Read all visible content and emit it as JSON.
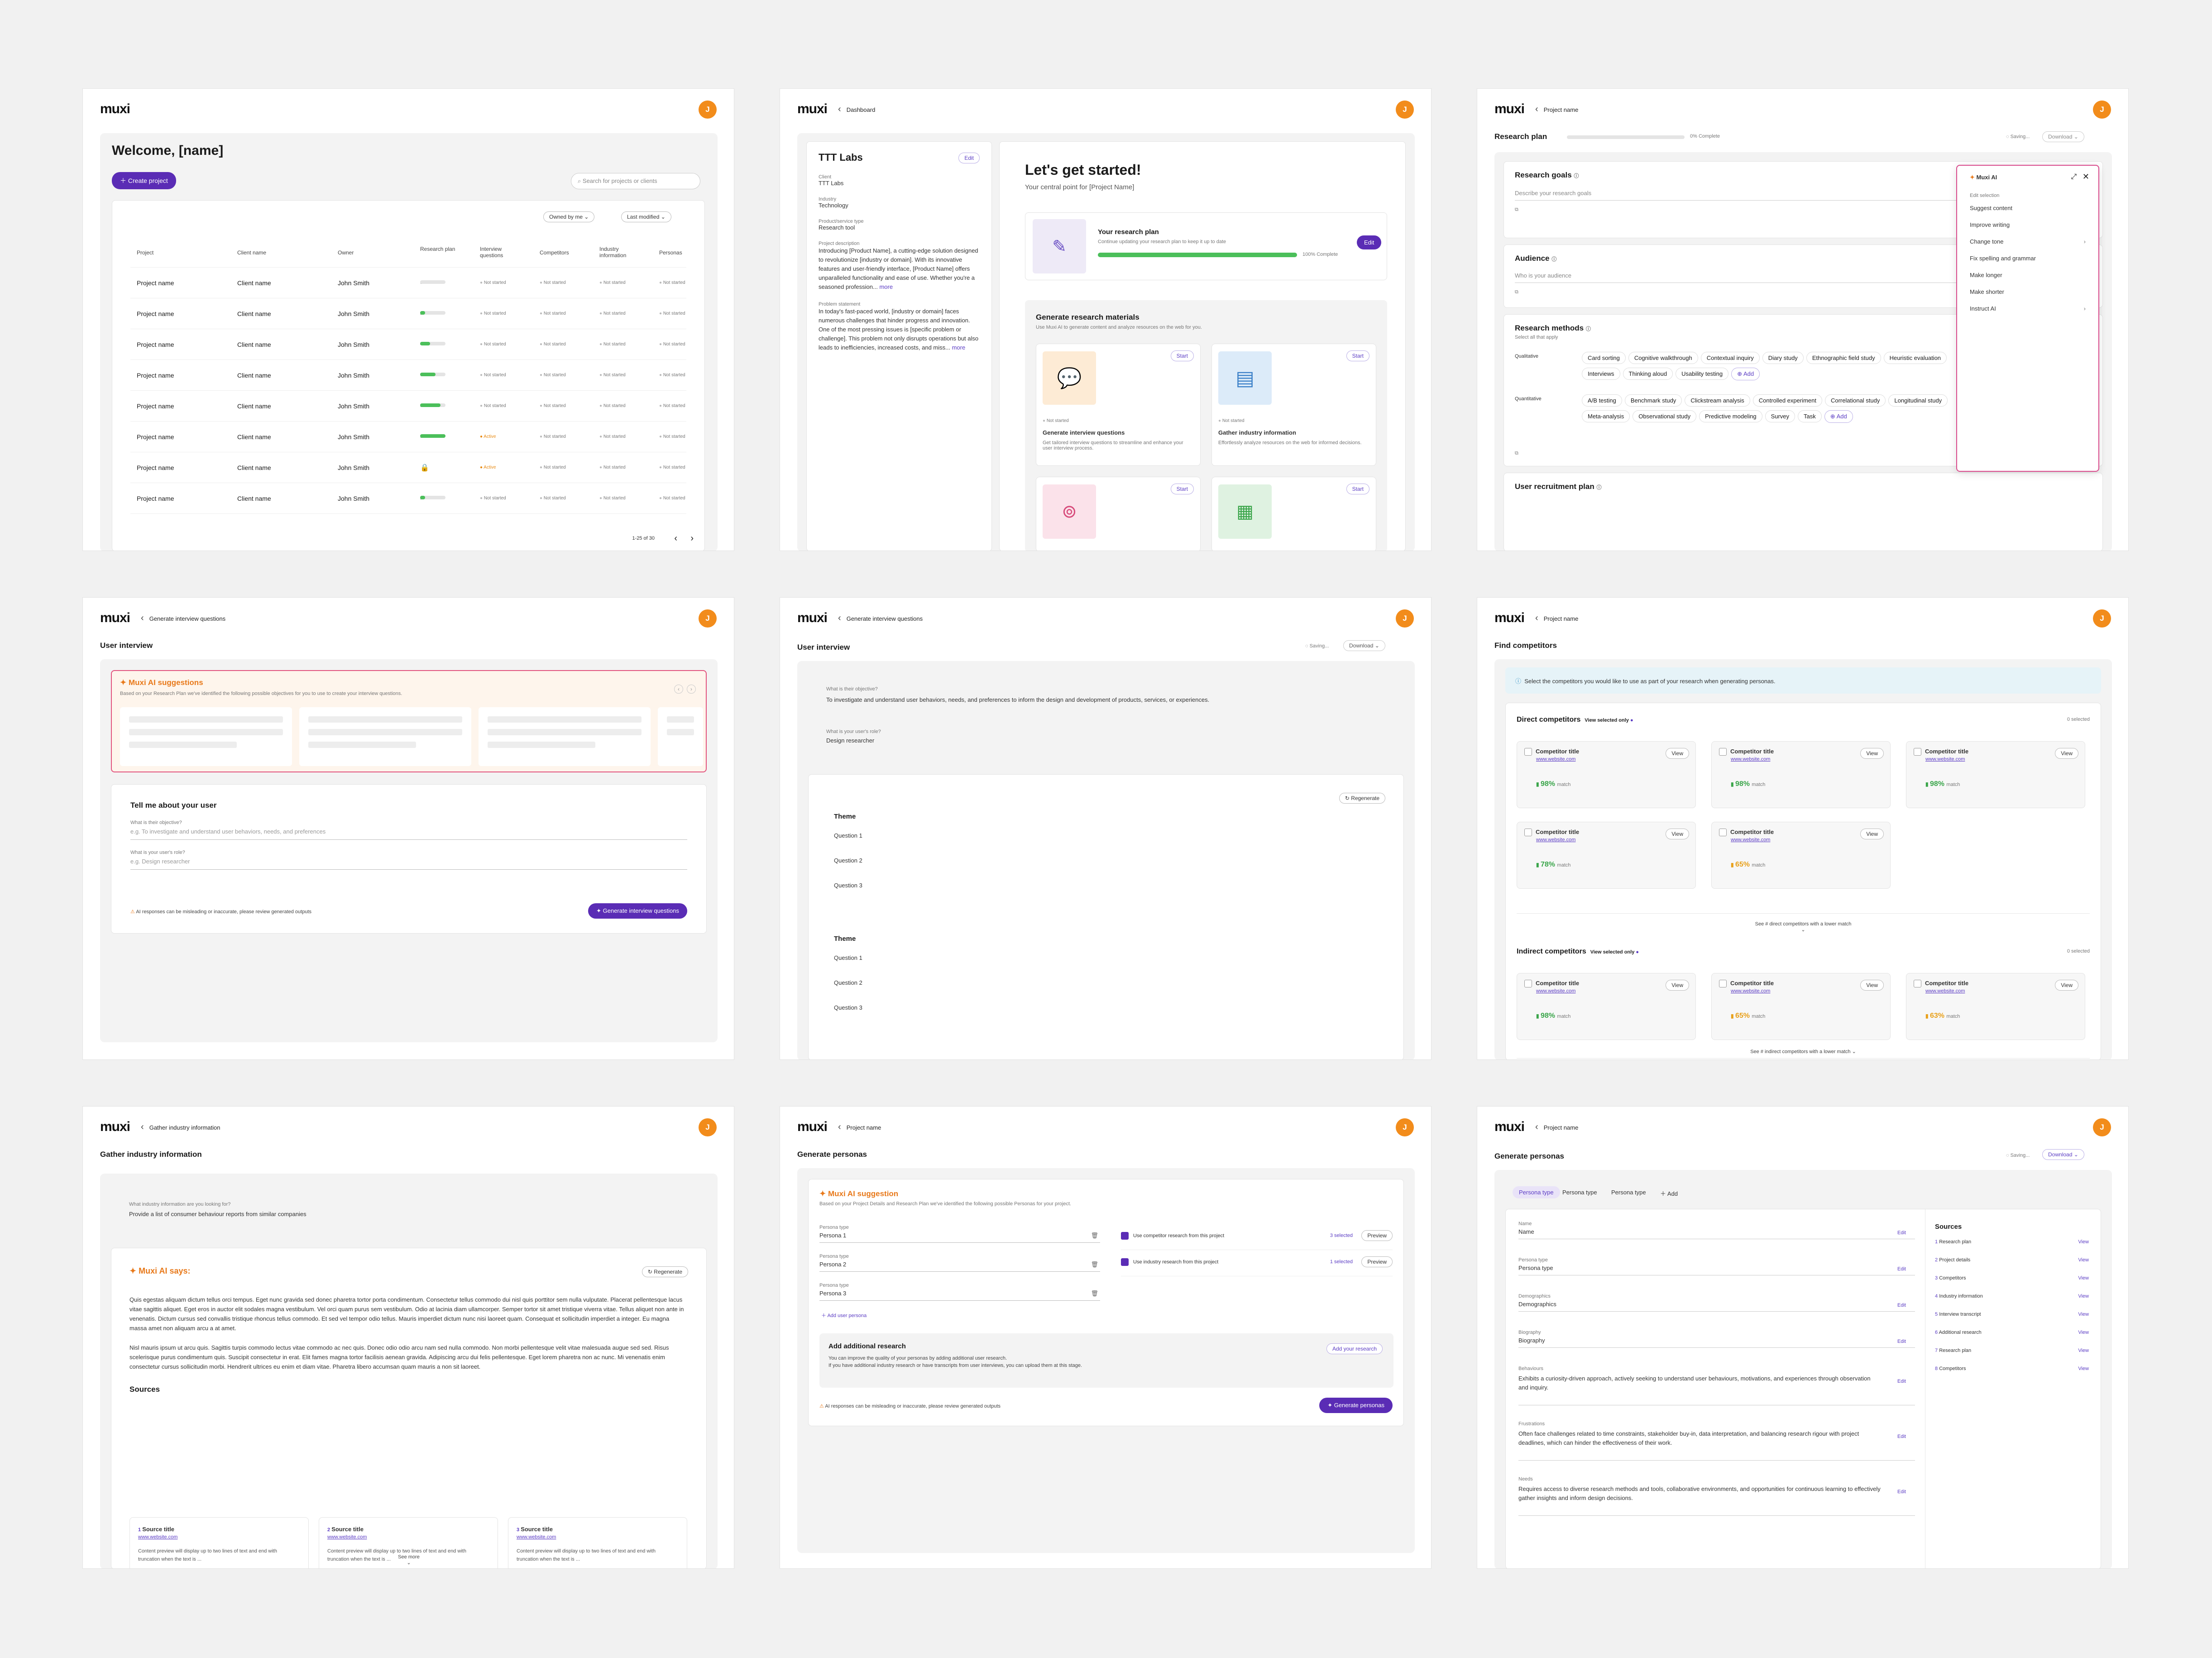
{
  "app": {
    "logo": "muxi",
    "avatar": "J"
  },
  "f1": {
    "title": "Welcome, [name]",
    "create": "Create project",
    "search": "Search for projects or clients",
    "owned": "Owned by me",
    "modified": "Last modified",
    "cols": [
      "Project",
      "Client name",
      "Owner",
      "Research plan",
      "Interview questions",
      "Competitors",
      "Industry information",
      "Personas"
    ],
    "rows": [
      {
        "p": "Project name",
        "c": "Client name",
        "o": "John Smith",
        "pct": "0%",
        "v": 0,
        "iq": "Not started",
        "comp": "Not started",
        "ind": "Not started",
        "per": "Not started"
      },
      {
        "p": "Project name",
        "c": "Client name",
        "o": "John Smith",
        "pct": "20%",
        "v": 20,
        "iq": "Not started",
        "comp": "Not started",
        "ind": "Not started",
        "per": "Not started"
      },
      {
        "p": "Project name",
        "c": "Client name",
        "o": "John Smith",
        "pct": "40%",
        "v": 40,
        "iq": "Not started",
        "comp": "Not started",
        "ind": "Not started",
        "per": "Not started"
      },
      {
        "p": "Project name",
        "c": "Client name",
        "o": "John Smith",
        "pct": "60%",
        "v": 60,
        "iq": "Not started",
        "comp": "Not started",
        "ind": "Not started",
        "per": "Not started"
      },
      {
        "p": "Project name",
        "c": "Client name",
        "o": "John Smith",
        "pct": "80%",
        "v": 80,
        "iq": "Not started",
        "comp": "Not started",
        "ind": "Not started",
        "per": "Not started"
      },
      {
        "p": "Project name",
        "c": "Client name",
        "o": "John Smith",
        "pct": "100%",
        "v": 100,
        "iq": "Active",
        "comp": "Not started",
        "ind": "Not started",
        "per": "Not started"
      },
      {
        "p": "Project name",
        "c": "Client name",
        "o": "John Smith",
        "pct": "",
        "v": -1,
        "iq": "Active",
        "comp": "Not started",
        "ind": "Not started",
        "per": "Not started"
      },
      {
        "p": "Project name",
        "c": "Client name",
        "o": "John Smith",
        "pct": "20%",
        "v": 20,
        "iq": "Not started",
        "comp": "Not started",
        "ind": "Not started",
        "per": "Not started"
      }
    ],
    "pager": "1-25 of 30"
  },
  "f2": {
    "crumb": "Dashboard",
    "org": "TTT Labs",
    "edit": "Edit",
    "l_client": "Client",
    "client": "TTT Labs",
    "l_ind": "Industry",
    "ind": "Technology",
    "l_prod": "Product/service type",
    "prod": "Research tool",
    "l_desc": "Project description",
    "desc": "Introducing [Product Name], a cutting-edge solution designed to revolutionize [industry or domain]. With its innovative features and user-friendly interface, [Product Name] offers unparalleled functionality and ease of use. Whether you're a seasoned profession...",
    "more": "more",
    "l_prob": "Problem statement",
    "prob": "In today's fast-paced world, [industry or domain] faces numerous challenges that hinder progress and innovation. One of the most pressing issues is [specific problem or challenge]. This problem not only disrupts operations but also leads to inefficiencies, increased costs, and miss...",
    "h": "Let's get started!",
    "sub": "Your central point for [Project Name]",
    "rp_t": "Your research plan",
    "rp_s": "Continue updating your research plan to keep it up to date",
    "rp_pct": "100% Complete",
    "rp_btn": "Edit",
    "gen_t": "Generate research materials",
    "gen_s": "Use Muxi AI to generate content and analyze resources on the web for you.",
    "start": "Start",
    "ns": "Not started",
    "c1_t": "Generate interview questions",
    "c1_s": "Get tailored interview questions to streamline and enhance your user interview process.",
    "c2_t": "Gather industry information",
    "c2_s": "Effortlessly analyze resources on the web for informed decisions."
  },
  "f3": {
    "crumb": "Project name",
    "title": "Research plan",
    "pct": "0% Complete",
    "saving": "Saving...",
    "dl": "Download",
    "goals": "Research goals",
    "goals_ph": "Describe your research goals",
    "aud": "Audience",
    "aud_ph": "Who is your audience",
    "meth": "Research methods",
    "meth_s": "Select all that apply",
    "ql": "Qualitative",
    "qual": [
      "Card sorting",
      "Cognitive walkthrough",
      "Contextual inquiry",
      "Diary study",
      "Ethnographic field study",
      "Heuristic evaluation",
      "Interviews",
      "Thinking aloud",
      "Usability testing"
    ],
    "qnl": "Quantitative",
    "quant": [
      "A/B testing",
      "Benchmark study",
      "Clickstream analysis",
      "Controlled experiment",
      "Correlational study",
      "Longitudinal study",
      "Meta-analysis",
      "Observational study",
      "Predictive modeling",
      "Survey",
      "Task"
    ],
    "add": "Add",
    "recruit": "User recruitment plan",
    "ai": {
      "title": "Muxi AI",
      "edit": "Edit selection",
      "items": [
        "Suggest content",
        "Improve writing",
        "Change tone",
        "Fix spelling and grammar",
        "Make longer",
        "Make shorter",
        "Instruct AI"
      ]
    }
  },
  "f4": {
    "crumb": "Generate interview questions",
    "title": "User interview",
    "sugg": "Muxi AI suggestions",
    "sugg_s": "Based on your Research Plan we've identified the following possible objectives for you to use to create your interview questions.",
    "tell": "Tell me about your user",
    "l_obj": "What is their objective?",
    "ph_obj": "e.g. To investigate and understand user behaviors, needs, and preferences",
    "l_role": "What is your user's role?",
    "ph_role": "e.g. Design researcher",
    "warn": "AI responses can be misleading or inaccurate, please review generated outputs",
    "gen": "Generate interview questions"
  },
  "f5": {
    "crumb": "Generate interview questions",
    "title": "User interview",
    "saving": "Saving...",
    "dl": "Download",
    "l_obj": "What is their objective?",
    "obj": "To investigate and understand user behaviors, needs, and preferences to inform the design and development of products, services, or experiences.",
    "l_role": "What is your user's role?",
    "role": "Design researcher",
    "regen": "Regenerate",
    "theme": "Theme",
    "q": [
      "Question 1",
      "Question 2",
      "Question 3"
    ]
  },
  "f6": {
    "crumb": "Project name",
    "title": "Find competitors",
    "info": "Select the competitors you would like to use as part of your research when generating personas.",
    "direct": "Direct competitors",
    "indirect": "Indirect competitors",
    "vso": "View selected only",
    "sel": "0 selected",
    "ct": "Competitor title",
    "url": "www.website.com",
    "view": "View",
    "match": "match",
    "dm": [
      "98%",
      "98%",
      "98%",
      "78%",
      "65%"
    ],
    "im": [
      "98%",
      "65%",
      "63%"
    ],
    "see_d": "See # direct competitors with a lower match",
    "see_i": "See # indirect competitors with a lower match"
  },
  "f7": {
    "crumb": "Gather industry information",
    "title": "Gather industry information",
    "l_q": "What industry information are you looking for?",
    "q": "Provide a list of consumer behaviour reports from similar companies",
    "says": "Muxi AI says:",
    "regen": "Regenerate",
    "p1": "Quis egestas aliquam dictum tellus orci tempus. Eget nunc gravida sed donec pharetra tortor porta condimentum. Consectetur tellus commodo dui nisl quis porttitor sem nulla vulputate. Placerat pellentesque lacus vitae sagittis aliquet. Eget eros in auctor elit sodales magna vestibulum. Vel orci quam purus sem vestibulum. Odio at lacinia diam ullamcorper. Semper tortor sit amet tristique viverra vitae. Tellus aliquet non ante in venenatis. Dictum cursus sed convallis tristique rhoncus tellus commodo. Et sed vel tempor odio tellus. Mauris imperdiet dictum nunc nisi laoreet quam. Consequat et sollicitudin imperdiet a integer. Eu magna massa amet non aliquam arcu a at amet.",
    "p2": "Nisl mauris ipsum ut arcu quis. Sagittis turpis commodo lectus vitae commodo ac nec quis. Donec odio odio arcu nam sed nulla commodo. Non morbi pellentesque velit vitae malesuada augue sed sed. Risus scelerisque purus condimentum quis. Suscipit consectetur in erat. Elit fames magna tortor facilisis aenean gravida. Adipiscing arcu dui felis pellentesque. Eget lorem pharetra non ac nunc. Mi venenatis enim consectetur cursus sollicitudin morbi. Hendrerit ultrices eu enim et diam vitae. Pharetra libero accumsan quam mauris a non sit laoreet.",
    "sources": "Sources",
    "st": "Source title",
    "surl": "www.website.com",
    "sprev": "Content preview will display up to two lines of text and end with truncation when the text is ...",
    "see": "See more"
  },
  "f8": {
    "crumb": "Project name",
    "title": "Generate personas",
    "sugg": "Muxi AI suggestion",
    "sugg_s": "Based on your Project Details and Research Plan we've identified the following possible Personas for your project.",
    "l_pt": "Persona type",
    "p": [
      "Persona 1",
      "Persona 2",
      "Persona 3"
    ],
    "use_c": "Use competitor research from this project",
    "use_i": "Use industry research from this project",
    "sel3": "3 selected",
    "sel1": "1 selected",
    "prev": "Preview",
    "add": "Add user persona",
    "addr_t": "Add additional research",
    "addr_s1": "You can improve the quality of your personas by adding additional user research.",
    "addr_s2": "If you have additional industry research or have transcripts from user interviews, you can upload them at this stage.",
    "addr_b": "Add your research",
    "warn": "AI responses can be misleading or inaccurate, please review generated outputs",
    "gen": "Generate personas"
  },
  "f9": {
    "crumb": "Project name",
    "title": "Generate personas",
    "saving": "Saving...",
    "dl": "Download",
    "tabs": [
      "Persona type",
      "Persona type",
      "Persona type"
    ],
    "add": "Add",
    "fields": [
      {
        "l": "Name",
        "v": "Name"
      },
      {
        "l": "Persona type",
        "v": "Persona type"
      },
      {
        "l": "Demographics",
        "v": "Demographics"
      },
      {
        "l": "Biography",
        "v": "Biography"
      },
      {
        "l": "Behaviours",
        "v": "Exhibits a curiosity-driven approach, actively seeking to understand user behaviours, motivations, and experiences through observation and inquiry."
      },
      {
        "l": "Frustrations",
        "v": "Often face challenges related to time constraints, stakeholder buy-in, data interpretation, and balancing research rigour with project deadlines, which can hinder the effectiveness of their work."
      },
      {
        "l": "Needs",
        "v": "Requires access to diverse research methods and tools, collaborative environments, and opportunities for continuous learning to effectively gather insights and inform design decisions."
      }
    ],
    "edit": "Edit",
    "sources": "Sources",
    "src": [
      "Research plan",
      "Project details",
      "Competitors",
      "Industry information",
      "Interview transcript",
      "Additional research",
      "Research plan",
      "Competitors"
    ],
    "view": "View"
  }
}
